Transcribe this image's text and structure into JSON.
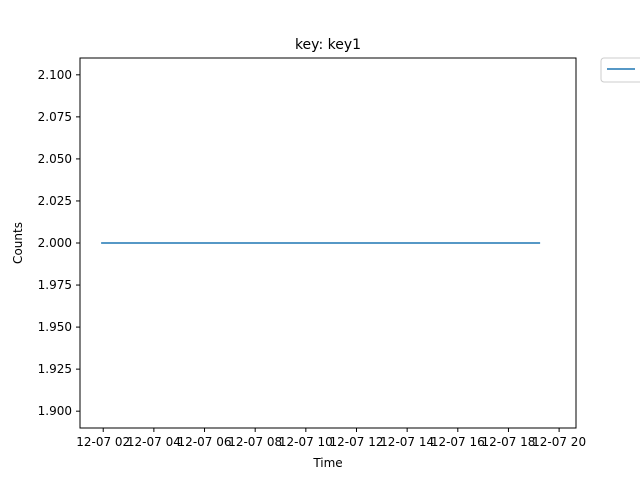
{
  "chart_data": {
    "type": "line",
    "title": "key: key1",
    "xlabel": "Time",
    "ylabel": "Counts",
    "x_ticks": [
      "12-07 02",
      "12-07 04",
      "12-07 06",
      "12-07 08",
      "12-07 10",
      "12-07 12",
      "12-07 14",
      "12-07 16",
      "12-07 18",
      "12-07 20"
    ],
    "xlim": [
      "12-07 01:05",
      "12-07 20:40"
    ],
    "ylim": [
      1.89,
      2.11
    ],
    "y_ticks": [
      1.9,
      1.925,
      1.95,
      1.975,
      2.0,
      2.025,
      2.05,
      2.075,
      2.1
    ],
    "y_tick_labels": [
      "1.900",
      "1.925",
      "1.950",
      "1.975",
      "2.000",
      "2.025",
      "2.050",
      "2.075",
      "2.100"
    ],
    "series": [
      {
        "x": [
          "12-07 01:55",
          "12-07 19:15"
        ],
        "y": [
          2.0,
          2.0
        ],
        "color": "#1f77b4"
      }
    ],
    "legend": {
      "placement": "outside-upper-right",
      "entries": [
        ""
      ]
    },
    "grid": false
  }
}
